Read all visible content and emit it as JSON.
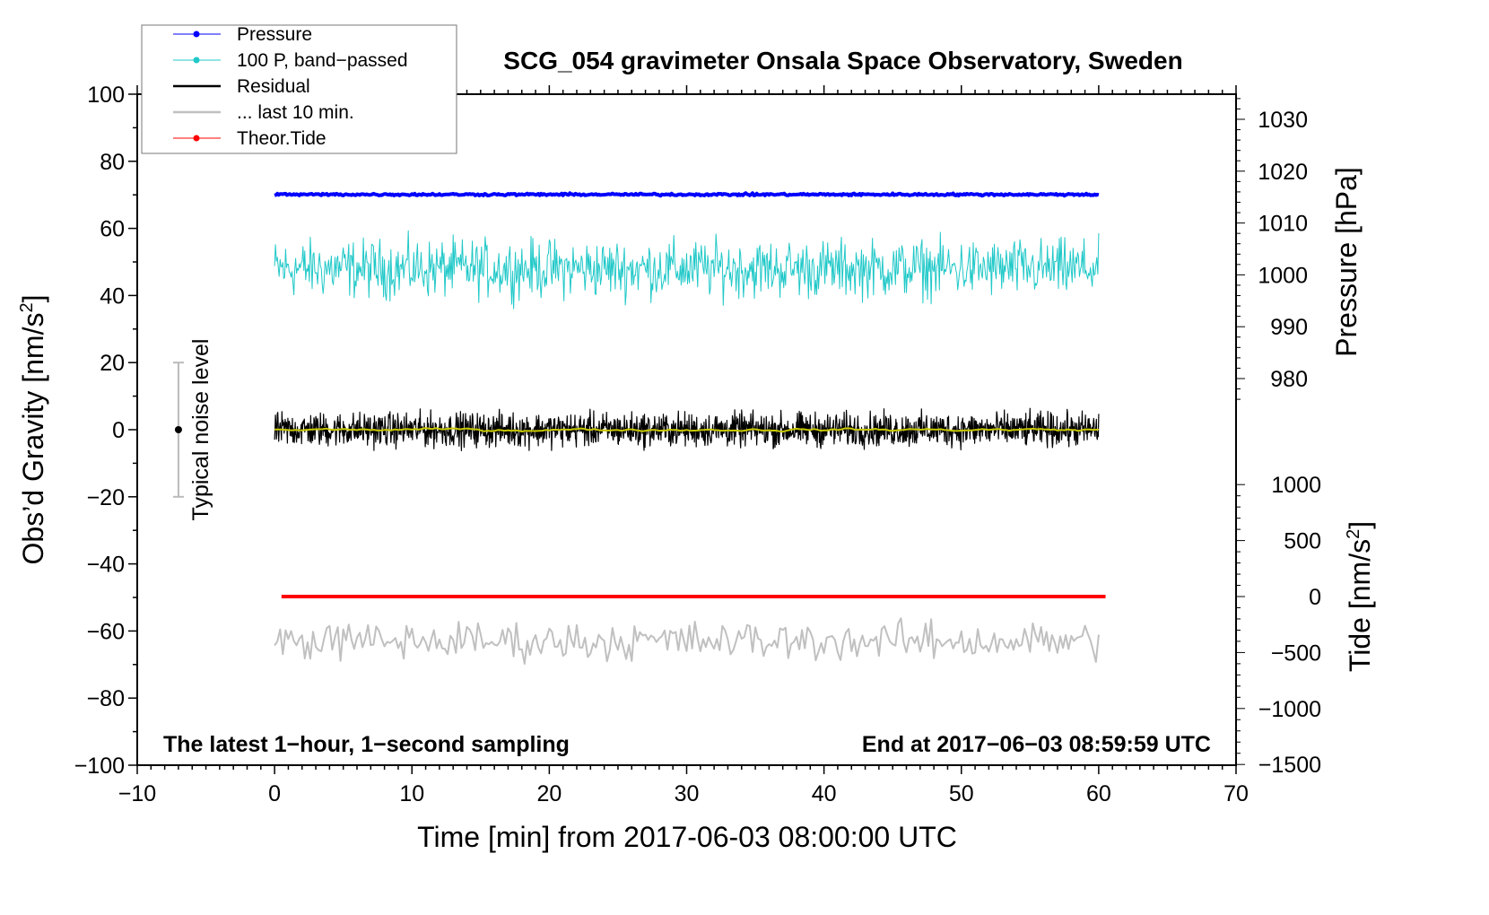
{
  "chart_data": {
    "type": "line",
    "title": "SCG_054 gravimeter Onsala Space Observatory, Sweden",
    "xlabel": "Time [min] from 2017-06-03 08:00:00 UTC",
    "ylabel": "Obs’d Gravity [nm/s",
    "ylabel_sup": "2",
    "ylabel_end": "]",
    "y2label_pressure": "Pressure [hPa]",
    "y2label_tide": "Tide [nm/s",
    "y2label_tide_sup": "2",
    "y2label_tide_end": "]",
    "xlim": [
      -10,
      70
    ],
    "ylim": [
      -100,
      100
    ],
    "xticks": [
      -10,
      0,
      10,
      20,
      30,
      40,
      50,
      60,
      70
    ],
    "xtick_labels": [
      "−10",
      "0",
      "10",
      "20",
      "30",
      "40",
      "50",
      "60",
      "70"
    ],
    "yticks": [
      100,
      80,
      60,
      40,
      20,
      0,
      -20,
      -40,
      -60,
      -80,
      -100
    ],
    "ytick_labels": [
      "100",
      "80",
      "60",
      "40",
      "20",
      "0",
      "−20",
      "−40",
      "−60",
      "−80",
      "−100"
    ],
    "pressure_ticks": [
      1030,
      1020,
      1010,
      1000,
      990,
      980
    ],
    "pressure_tick_labels": [
      "1030",
      "1020",
      "1010",
      "1000",
      "990",
      "980"
    ],
    "tide_ticks": [
      1000,
      500,
      0,
      -500,
      -1000,
      -1500
    ],
    "tide_tick_labels": [
      "1000",
      "500",
      "0",
      "−500",
      "−1000",
      "−1500"
    ],
    "grid": false,
    "legend_position": "top-left",
    "legend": [
      {
        "label": "Pressure",
        "color": "#0000ff",
        "marker": "dot"
      },
      {
        "label": "100 P, band−passed",
        "color": "#20c8c8",
        "marker": "dot"
      },
      {
        "label": "Residual",
        "color": "#000000",
        "marker": "line"
      },
      {
        "label": "... last 10 min.",
        "color": "#c0c0c0",
        "marker": "line"
      },
      {
        "label": "Theor.Tide",
        "color": "#ff0000",
        "marker": "dot"
      }
    ],
    "series": [
      {
        "name": "Pressure",
        "unit": "hPa",
        "x_range": [
          0,
          60
        ],
        "level": 1015.5,
        "noise": 0.15,
        "color": "#0000ff"
      },
      {
        "name": "100 P, band-passed",
        "unit": "nm/s2 (plotted offset)",
        "x_range": [
          0,
          60
        ],
        "level": 48,
        "noise": 6,
        "color": "#20c8c8"
      },
      {
        "name": "Residual",
        "unit": "nm/s2",
        "x_range": [
          0,
          60
        ],
        "level": 0,
        "noise": 3.5,
        "color": "#000000"
      },
      {
        "name": "Residual smoothed",
        "unit": "nm/s2",
        "x_range": [
          0,
          60
        ],
        "level": 0,
        "noise": 1,
        "color": "#c8c800"
      },
      {
        "name": "... last 10 min.",
        "unit": "nm/s2 (plotted offset)",
        "x_range": [
          0,
          60
        ],
        "level": -63,
        "noise": 4,
        "color": "#c0c0c0"
      },
      {
        "name": "Theor.Tide",
        "unit": "nm/s2",
        "x_range": [
          0.5,
          60.5
        ],
        "level": 0,
        "noise": 0,
        "color": "#ff0000"
      }
    ],
    "noise_bar": {
      "label": "Typical noise level",
      "x": -7,
      "range": [
        -20,
        20
      ],
      "center": 0
    },
    "annotations": {
      "left": "The latest 1−hour, 1−second sampling",
      "right": "End at 2017−06−03 08:59:59 UTC"
    }
  }
}
